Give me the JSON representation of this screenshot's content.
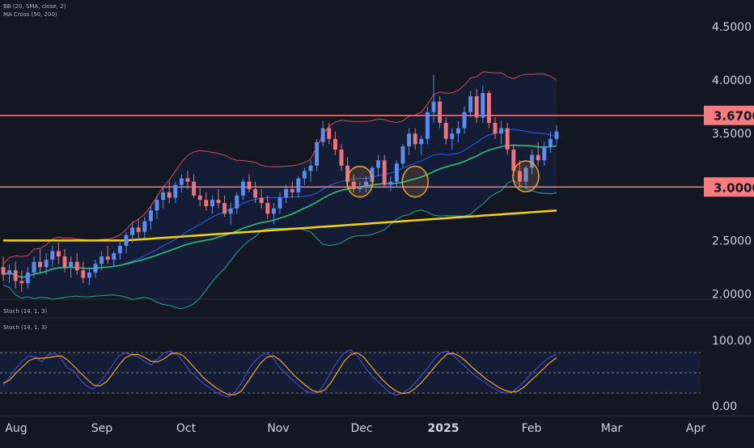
{
  "indicators": {
    "bb_label": "BB (20, SMA, close, 2)",
    "ma_label": "MA Cross (50, 200)",
    "stoch_top_label": "Stoch (14, 1, 3)",
    "stoch_label": "Stoch (14, 1, 3)"
  },
  "colors": {
    "background": "#131722",
    "up_candle": "#5b8def",
    "down_candle": "#f0727a",
    "bb_upper": "#d14d57",
    "bb_lower": "#26a69a",
    "bb_basis": "#2962ff",
    "ma50": "#26c281",
    "ma200": "#f5d40c",
    "hline": "#f77c80",
    "stoch_k": "#4f54d8",
    "stoch_d": "#f2a33a",
    "circle": "#f0a336"
  },
  "chart_data": [
    {
      "type": "candlestick",
      "series_name": "Price",
      "x_axis_labels": [
        "Aug",
        "Sep",
        "Oct",
        "Nov",
        "Dec",
        "2025",
        "Feb",
        "Mar",
        "Apr"
      ],
      "ylim": [
        1.95,
        4.75
      ],
      "y_ticks": [
        "2.0000",
        "2.5000",
        "3.0000",
        "3.5000",
        "4.0000",
        "4.5000"
      ],
      "horizontal_levels": [
        {
          "label": "3.6700",
          "value": 3.67
        },
        {
          "label": "3.0000",
          "value": 3.0
        }
      ],
      "candles": [
        [
          2.25,
          2.35,
          2.12,
          2.18
        ],
        [
          2.18,
          2.28,
          2.1,
          2.22
        ],
        [
          2.22,
          2.3,
          2.05,
          2.12
        ],
        [
          2.12,
          2.22,
          2.02,
          2.1
        ],
        [
          2.1,
          2.25,
          2.05,
          2.2
        ],
        [
          2.2,
          2.35,
          2.15,
          2.3
        ],
        [
          2.3,
          2.42,
          2.2,
          2.25
        ],
        [
          2.25,
          2.38,
          2.18,
          2.32
        ],
        [
          2.32,
          2.45,
          2.25,
          2.4
        ],
        [
          2.4,
          2.48,
          2.28,
          2.35
        ],
        [
          2.35,
          2.42,
          2.2,
          2.25
        ],
        [
          2.25,
          2.35,
          2.15,
          2.3
        ],
        [
          2.3,
          2.38,
          2.18,
          2.22
        ],
        [
          2.22,
          2.3,
          2.1,
          2.15
        ],
        [
          2.15,
          2.25,
          2.08,
          2.2
        ],
        [
          2.2,
          2.32,
          2.15,
          2.28
        ],
        [
          2.28,
          2.4,
          2.22,
          2.35
        ],
        [
          2.35,
          2.45,
          2.28,
          2.32
        ],
        [
          2.32,
          2.4,
          2.25,
          2.38
        ],
        [
          2.38,
          2.5,
          2.32,
          2.45
        ],
        [
          2.45,
          2.58,
          2.38,
          2.55
        ],
        [
          2.55,
          2.68,
          2.48,
          2.62
        ],
        [
          2.62,
          2.7,
          2.5,
          2.58
        ],
        [
          2.58,
          2.72,
          2.52,
          2.68
        ],
        [
          2.68,
          2.82,
          2.6,
          2.78
        ],
        [
          2.78,
          2.92,
          2.7,
          2.88
        ],
        [
          2.88,
          3.0,
          2.8,
          2.95
        ],
        [
          2.95,
          3.05,
          2.85,
          2.9
        ],
        [
          2.9,
          3.05,
          2.85,
          3.02
        ],
        [
          3.02,
          3.12,
          2.95,
          3.08
        ],
        [
          3.08,
          3.15,
          2.98,
          3.05
        ],
        [
          3.05,
          3.12,
          2.9,
          2.92
        ],
        [
          2.92,
          3.0,
          2.82,
          2.88
        ],
        [
          2.88,
          2.95,
          2.78,
          2.82
        ],
        [
          2.82,
          2.92,
          2.75,
          2.88
        ],
        [
          2.88,
          2.98,
          2.8,
          2.85
        ],
        [
          2.85,
          2.92,
          2.72,
          2.75
        ],
        [
          2.75,
          2.85,
          2.65,
          2.8
        ],
        [
          2.8,
          2.95,
          2.75,
          2.92
        ],
        [
          2.92,
          3.08,
          2.88,
          3.05
        ],
        [
          3.05,
          3.12,
          2.95,
          2.98
        ],
        [
          2.98,
          3.05,
          2.85,
          2.9
        ],
        [
          2.9,
          2.98,
          2.8,
          2.85
        ],
        [
          2.85,
          2.92,
          2.7,
          2.75
        ],
        [
          2.75,
          2.85,
          2.65,
          2.8
        ],
        [
          2.8,
          2.95,
          2.75,
          2.9
        ],
        [
          2.9,
          3.02,
          2.85,
          2.98
        ],
        [
          2.98,
          3.05,
          2.9,
          2.95
        ],
        [
          2.95,
          3.1,
          2.9,
          3.08
        ],
        [
          3.08,
          3.18,
          3.02,
          3.15
        ],
        [
          3.15,
          3.25,
          3.05,
          3.2
        ],
        [
          3.2,
          3.45,
          3.15,
          3.42
        ],
        [
          3.42,
          3.62,
          3.38,
          3.55
        ],
        [
          3.55,
          3.6,
          3.4,
          3.45
        ],
        [
          3.45,
          3.52,
          3.3,
          3.35
        ],
        [
          3.35,
          3.4,
          3.15,
          3.2
        ],
        [
          3.2,
          3.28,
          3.0,
          3.05
        ],
        [
          3.05,
          3.12,
          2.95,
          2.98
        ],
        [
          2.98,
          3.05,
          2.95,
          3.0
        ],
        [
          3.0,
          3.1,
          2.95,
          3.05
        ],
        [
          3.05,
          3.2,
          3.0,
          3.18
        ],
        [
          3.18,
          3.3,
          3.1,
          3.25
        ],
        [
          3.25,
          3.3,
          3.0,
          3.02
        ],
        [
          3.02,
          3.1,
          2.96,
          3.05
        ],
        [
          3.05,
          3.25,
          3.0,
          3.22
        ],
        [
          3.22,
          3.4,
          3.18,
          3.38
        ],
        [
          3.38,
          3.55,
          3.3,
          3.5
        ],
        [
          3.5,
          3.55,
          3.35,
          3.4
        ],
        [
          3.4,
          3.48,
          3.3,
          3.45
        ],
        [
          3.45,
          3.75,
          3.4,
          3.7
        ],
        [
          3.7,
          4.05,
          3.6,
          3.8
        ],
        [
          3.8,
          3.85,
          3.55,
          3.6
        ],
        [
          3.6,
          3.65,
          3.4,
          3.45
        ],
        [
          3.45,
          3.55,
          3.35,
          3.5
        ],
        [
          3.5,
          3.62,
          3.42,
          3.55
        ],
        [
          3.55,
          3.75,
          3.5,
          3.7
        ],
        [
          3.7,
          3.9,
          3.65,
          3.85
        ],
        [
          3.85,
          3.92,
          3.6,
          3.65
        ],
        [
          3.65,
          3.95,
          3.6,
          3.88
        ],
        [
          3.88,
          3.9,
          3.55,
          3.6
        ],
        [
          3.6,
          3.65,
          3.45,
          3.5
        ],
        [
          3.5,
          3.62,
          3.4,
          3.55
        ],
        [
          3.55,
          3.6,
          3.3,
          3.35
        ],
        [
          3.35,
          3.4,
          3.1,
          3.15
        ],
        [
          3.15,
          3.25,
          3.0,
          3.05
        ],
        [
          3.05,
          3.2,
          2.98,
          3.18
        ],
        [
          3.18,
          3.35,
          3.12,
          3.3
        ],
        [
          3.3,
          3.42,
          3.2,
          3.25
        ],
        [
          3.25,
          3.42,
          3.2,
          3.38
        ],
        [
          3.38,
          3.52,
          3.32,
          3.45
        ],
        [
          3.45,
          3.58,
          3.4,
          3.52
        ]
      ]
    },
    {
      "type": "line",
      "series_name": "Stochastic",
      "ylim": [
        0,
        100
      ],
      "y_ticks": [
        "0.00",
        "100.00"
      ],
      "bands": [
        20,
        50,
        80
      ],
      "k": [
        30,
        45,
        60,
        72,
        80,
        78,
        70,
        82,
        85,
        75,
        60,
        55,
        40,
        30,
        25,
        35,
        50,
        65,
        80,
        85,
        82,
        78,
        70,
        65,
        75,
        85,
        88,
        82,
        70,
        55,
        45,
        35,
        28,
        20,
        15,
        12,
        20,
        35,
        55,
        70,
        80,
        85,
        75,
        60,
        50,
        40,
        30,
        22,
        18,
        20,
        35,
        55,
        72,
        85,
        90,
        80,
        65,
        50,
        40,
        30,
        20,
        15,
        18,
        25,
        35,
        48,
        60,
        75,
        85,
        88,
        80,
        70,
        60,
        50,
        42,
        35,
        28,
        22,
        18,
        20,
        28,
        38,
        50,
        60,
        70,
        78,
        82
      ],
      "d": [
        35,
        40,
        52,
        62,
        72,
        76,
        76,
        77,
        79,
        80,
        73,
        63,
        52,
        42,
        32,
        30,
        37,
        50,
        65,
        77,
        82,
        82,
        77,
        71,
        70,
        75,
        83,
        85,
        80,
        69,
        57,
        45,
        36,
        28,
        21,
        16,
        16,
        22,
        37,
        53,
        68,
        78,
        80,
        73,
        62,
        50,
        40,
        31,
        23,
        20,
        24,
        37,
        54,
        71,
        82,
        85,
        78,
        65,
        52,
        40,
        30,
        22,
        18,
        19,
        26,
        36,
        48,
        61,
        73,
        83,
        84,
        79,
        70,
        60,
        51,
        42,
        35,
        28,
        23,
        20,
        22,
        29,
        39,
        49,
        59,
        69,
        77
      ]
    }
  ]
}
